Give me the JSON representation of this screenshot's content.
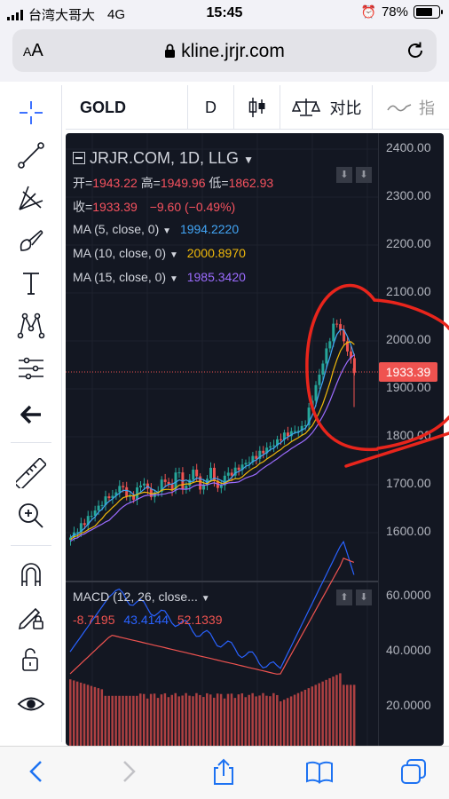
{
  "status_bar": {
    "carrier": "台湾大哥大",
    "network": "4G",
    "time": "15:45",
    "battery": "78%",
    "battery_level": 0.78
  },
  "browser": {
    "text_size_button": "AA",
    "url": "kline.jrjr.com"
  },
  "toolbar": {
    "symbol": "GOLD",
    "interval": "D",
    "compare_label": "对比",
    "indicators_label": "指"
  },
  "left_tools": [
    "crosshair-icon",
    "trend-line-icon",
    "pitchfork-icon",
    "brush-icon",
    "text-icon",
    "pattern-icon",
    "measure-icon",
    "back-arrow-icon",
    "ruler-icon",
    "zoom-in-icon",
    "magnet-icon",
    "lock-draw-icon",
    "unlock-icon",
    "eye-icon"
  ],
  "chart": {
    "title": "JRJR.COM, 1D, LLG",
    "ohlc": {
      "open_label": "开=",
      "open": "1943.22",
      "high_label": "高=",
      "high": "1949.96",
      "low_label": "低=",
      "low": "1862.93",
      "close_label": "收=",
      "close": "1933.39",
      "change": "−9.60 (−0.49%)"
    },
    "ma": [
      {
        "label": "MA (5, close, 0)",
        "value": "1994.2220",
        "color": "#42a5f5"
      },
      {
        "label": "MA (10, close, 0)",
        "value": "2000.8970",
        "color": "#f0b90b"
      },
      {
        "label": "MA (15, close, 0)",
        "value": "1985.3420",
        "color": "#9c6cff"
      }
    ],
    "price_ticks": [
      "2400.00",
      "2300.00",
      "2200.00",
      "2100.00",
      "2000.00",
      "1900.00",
      "1800.00",
      "1700.00",
      "1600.00"
    ],
    "last_price": "1933.39",
    "macd": {
      "label": "MACD (12, 26, close...",
      "values": [
        "-8.7195",
        "43.4144",
        "52.1339"
      ],
      "ticks": [
        "60.0000",
        "40.0000",
        "20.0000"
      ]
    },
    "colors": {
      "up": "#26a69a",
      "down": "#ef5350",
      "background": "#131722",
      "annotation": "#e8251c"
    }
  }
}
